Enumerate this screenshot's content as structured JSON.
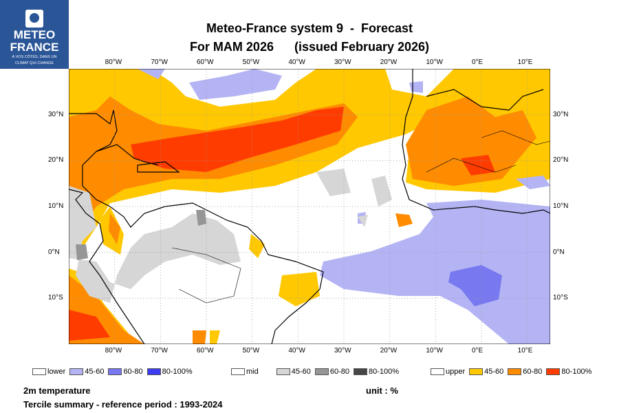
{
  "logo": {
    "line1": "METEO",
    "line2": "FRANCE",
    "tagline1": "À VOS CÔTÉS, DANS UN",
    "tagline2": "CLIMAT QUI CHANGE"
  },
  "title": {
    "line1": "Meteo-France system 9  -  Forecast",
    "line2": "For MAM 2026      (issued February 2026)"
  },
  "map": {
    "lon_labels": [
      "80°W",
      "70°W",
      "60°W",
      "50°W",
      "40°W",
      "30°W",
      "20°W",
      "10°W",
      "0°E",
      "10°E"
    ],
    "lat_labels": [
      "30°N",
      "20°N",
      "10°N",
      "0°N",
      "10°S"
    ],
    "lon_range": [
      -90,
      15
    ],
    "lat_range": [
      -20,
      40
    ]
  },
  "legend": {
    "lower": {
      "label": "lower",
      "bins": [
        {
          "label": "45-60",
          "color": "#b4b4f5"
        },
        {
          "label": "60-80",
          "color": "#7878f0"
        },
        {
          "label": "80-100%",
          "color": "#3c3cf0"
        }
      ]
    },
    "mid": {
      "label": "mid",
      "bins": [
        {
          "label": "45-60",
          "color": "#d6d6d6"
        },
        {
          "label": "60-80",
          "color": "#969696"
        },
        {
          "label": "80-100%",
          "color": "#464646"
        }
      ]
    },
    "upper": {
      "label": "upper",
      "bins": [
        {
          "label": "45-60",
          "color": "#ffc800"
        },
        {
          "label": "60-80",
          "color": "#ff8c00"
        },
        {
          "label": "80-100%",
          "color": "#ff3c00"
        }
      ]
    }
  },
  "footer": {
    "variable": "2m temperature",
    "unit": "unit : %",
    "summary": "Tercile summary - reference period : 1993-2024"
  }
}
